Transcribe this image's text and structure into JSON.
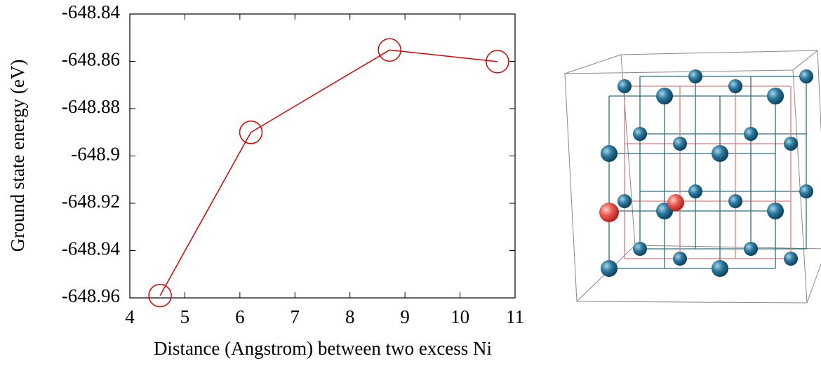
{
  "chart_data": {
    "type": "line",
    "x_label": "Distance (Angstrom) between two excess Ni",
    "y_label": "Ground state energy (eV)",
    "x": [
      4.55,
      6.2,
      8.72,
      10.68
    ],
    "values": [
      -648.959,
      -648.89,
      -648.8552,
      -648.8601
    ],
    "color": "#e00000",
    "marker": "circle",
    "xlim": [
      4,
      11
    ],
    "xticks": [
      4,
      5,
      6,
      7,
      8,
      9,
      10,
      11
    ],
    "ylim": [
      -648.96,
      -648.84
    ],
    "yticks": [
      -648.96,
      -648.94,
      -648.92,
      -648.9,
      -648.88,
      -648.86,
      -648.84
    ]
  }
}
